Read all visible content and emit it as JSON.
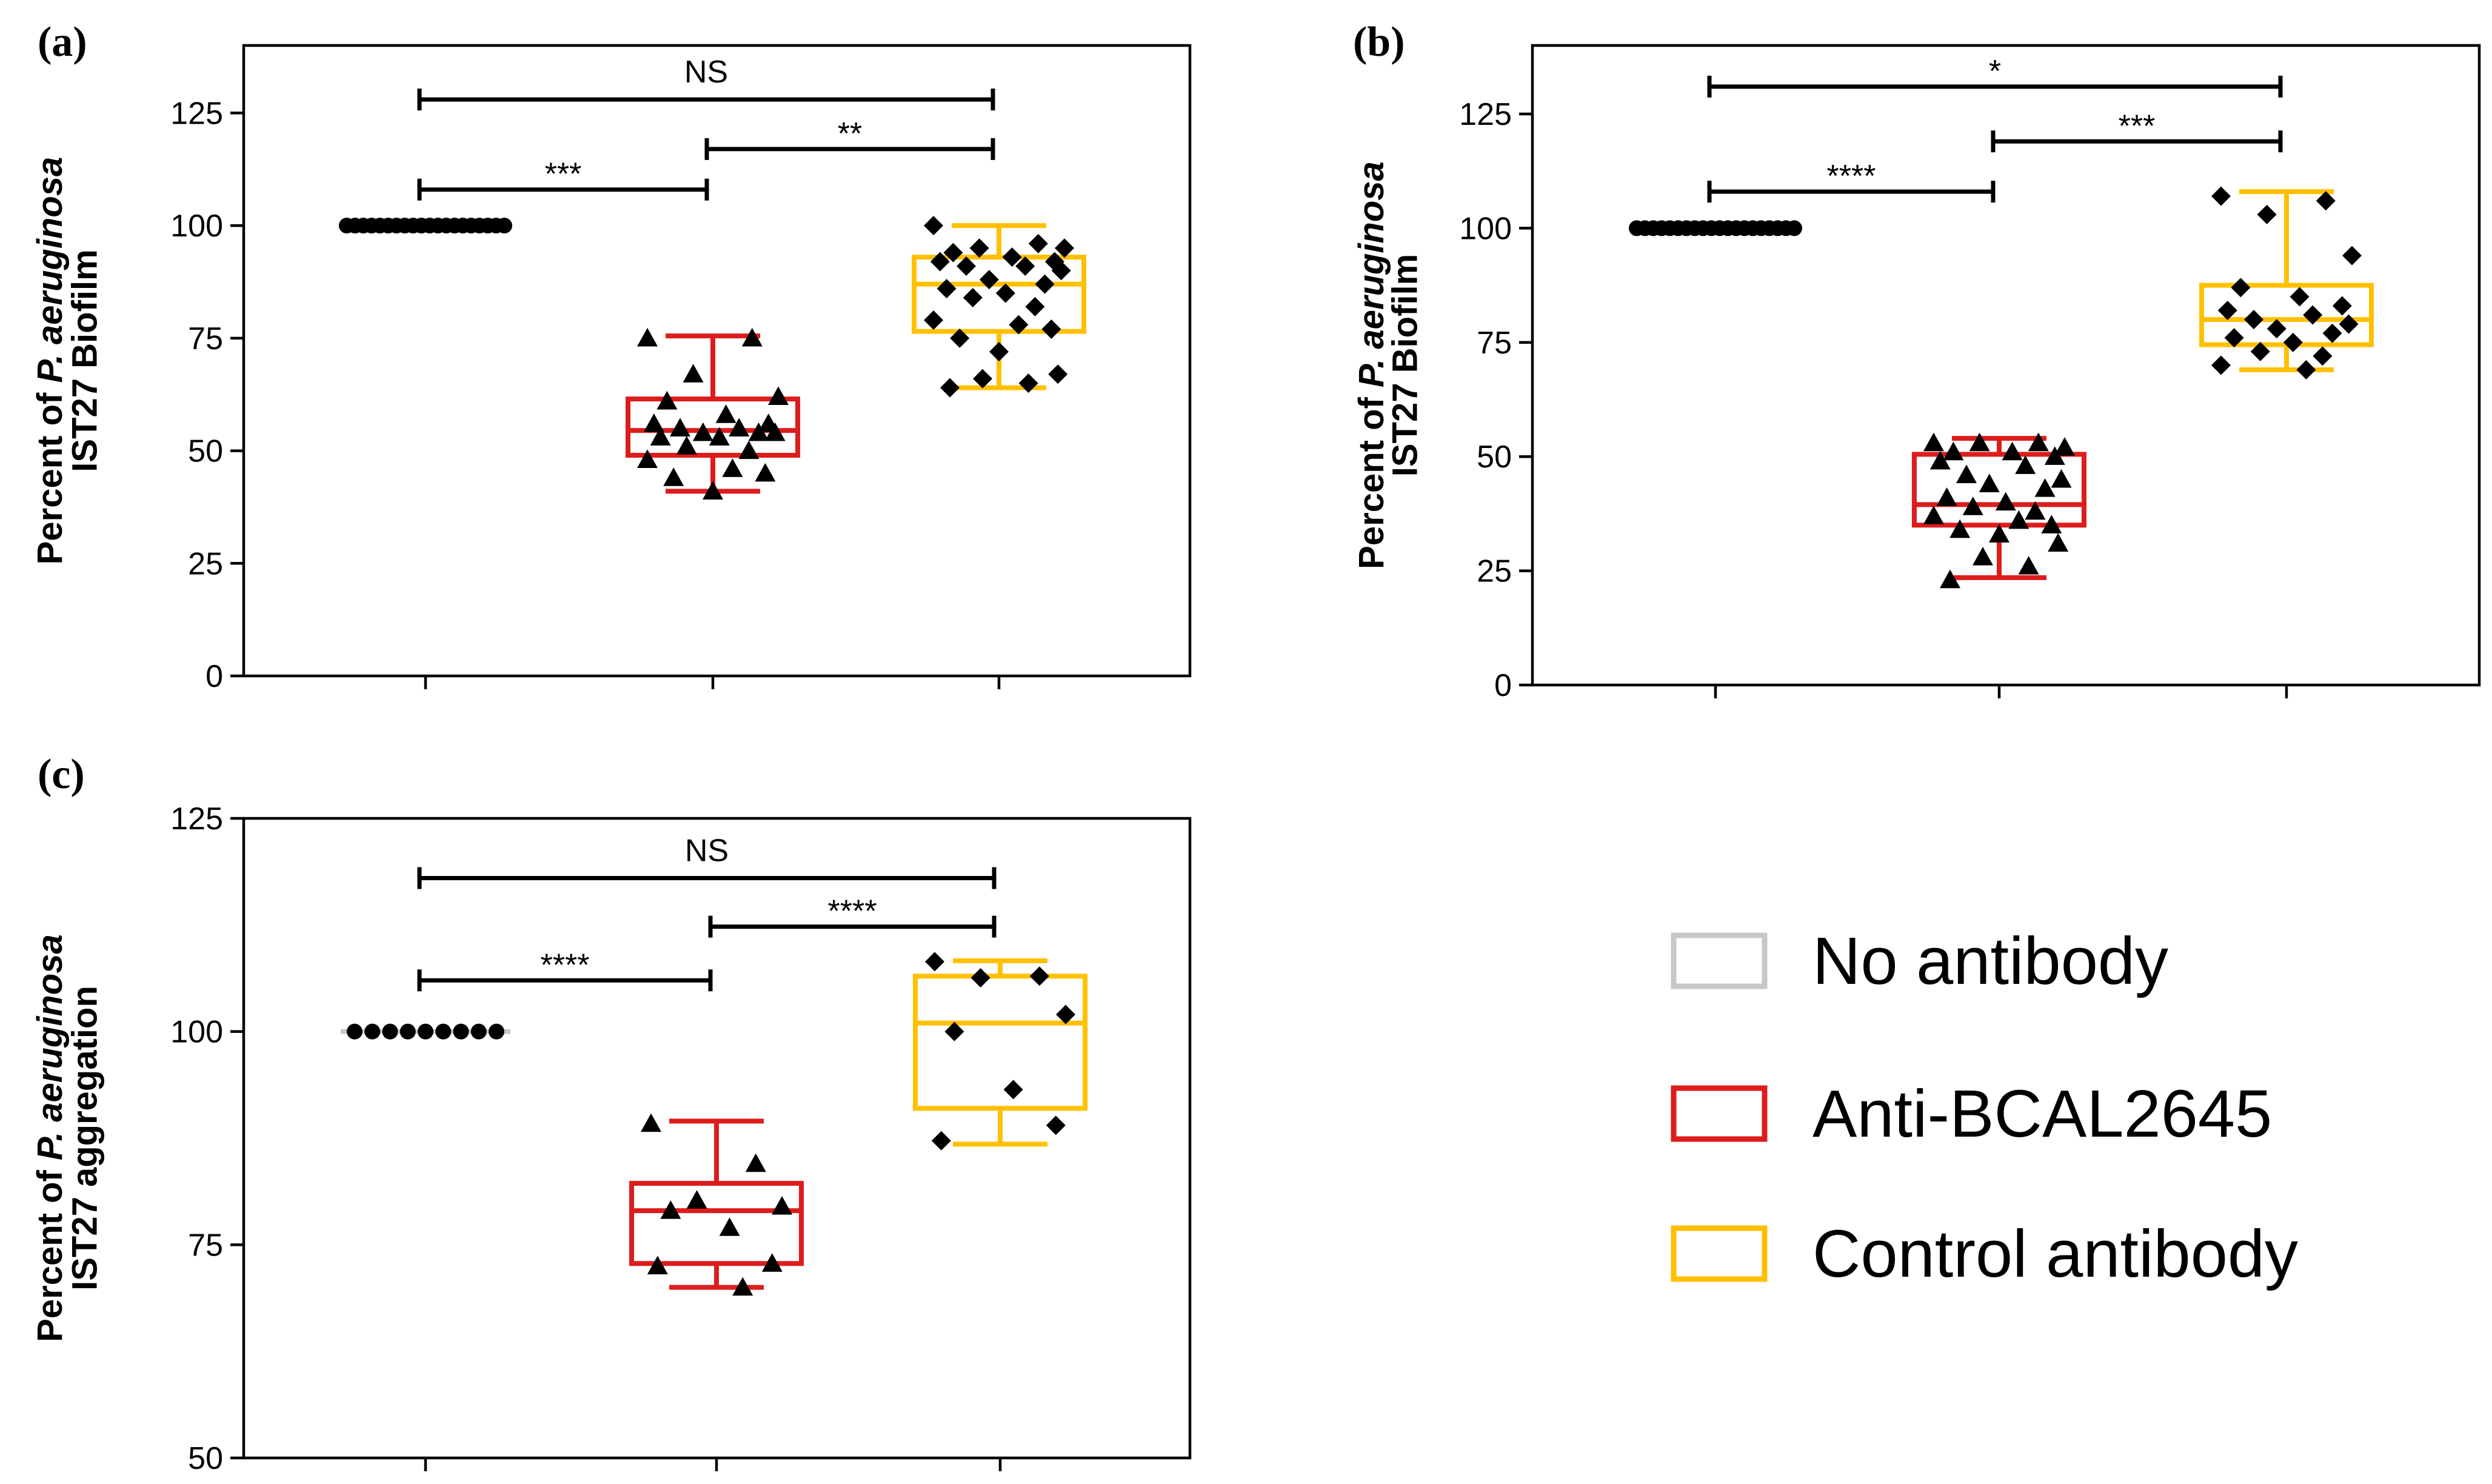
{
  "chart_data": [
    {
      "panel": "(a)",
      "type": "box",
      "ylabel_line1_prefix": "Percent of ",
      "ylabel_line1_italic": "P. aeruginosa",
      "ylabel_line2": "IST27 Biofilm",
      "ylim": [
        0,
        140
      ],
      "yticks": [
        0,
        25,
        50,
        75,
        100,
        125
      ],
      "groups": [
        {
          "name": "No antibody",
          "color": "#c8c8c8",
          "marker": "circle",
          "box": [
            100,
            100,
            100,
            100,
            100
          ],
          "points": [
            100,
            100,
            100,
            100,
            100,
            100,
            100,
            100,
            100,
            100,
            100,
            100,
            100,
            100,
            100,
            100,
            100,
            100,
            100,
            100
          ]
        },
        {
          "name": "Anti-BCAL2645",
          "color": "#dd1c1c",
          "marker": "triangle",
          "box": [
            41,
            49,
            54.5,
            61.5,
            75.5
          ],
          "points": [
            75,
            75,
            67,
            62,
            61,
            58,
            56,
            56,
            55,
            55,
            54,
            54,
            54,
            53,
            53,
            51,
            50,
            48,
            46,
            45,
            44,
            41
          ]
        },
        {
          "name": "Control antibody",
          "color": "#ffc000",
          "marker": "diamond",
          "box": [
            64,
            76.5,
            87,
            93,
            100
          ],
          "points": [
            100,
            96,
            95,
            95,
            94,
            93,
            92,
            92,
            91,
            91,
            90,
            88,
            87,
            86,
            85,
            84,
            82,
            79,
            78,
            77,
            75,
            72,
            67,
            66,
            65,
            64
          ]
        }
      ],
      "significance": [
        {
          "from": 0,
          "to": 2,
          "level": 128,
          "label": "NS"
        },
        {
          "from": 1,
          "to": 2,
          "level": 117,
          "label": "**"
        },
        {
          "from": 0,
          "to": 1,
          "level": 108,
          "label": "***"
        }
      ]
    },
    {
      "panel": "(b)",
      "type": "box",
      "ylabel_line1_prefix": "Percent of ",
      "ylabel_line1_italic": "P. aeruginosa",
      "ylabel_line2": "IST27 Biofilm",
      "ylim": [
        0,
        140
      ],
      "yticks": [
        0,
        25,
        50,
        75,
        100,
        125
      ],
      "groups": [
        {
          "name": "No antibody",
          "color": "#c8c8c8",
          "marker": "circle",
          "box": [
            100,
            100,
            100,
            100,
            100
          ],
          "points": [
            100,
            100,
            100,
            100,
            100,
            100,
            100,
            100,
            100,
            100,
            100,
            100,
            100,
            100,
            100,
            100,
            100,
            100,
            100,
            100
          ]
        },
        {
          "name": "Anti-BCAL2645",
          "color": "#dd1c1c",
          "marker": "triangle",
          "box": [
            23.5,
            35,
            39.5,
            50.5,
            54
          ],
          "points": [
            53,
            53,
            53,
            52,
            51,
            51,
            50,
            49,
            48,
            46,
            45,
            44,
            43,
            41,
            40,
            39,
            38,
            37,
            36,
            35,
            34,
            33,
            31,
            28,
            26,
            23
          ]
        },
        {
          "name": "Control antibody",
          "color": "#ffc000",
          "marker": "diamond",
          "box": [
            69,
            74.5,
            80,
            87.5,
            108
          ],
          "points": [
            107,
            106,
            103,
            94,
            87,
            85,
            83,
            82,
            81,
            80,
            79,
            78,
            77,
            76,
            75,
            73,
            72,
            70,
            69
          ]
        }
      ],
      "significance": [
        {
          "from": 0,
          "to": 2,
          "level": 131,
          "label": "*"
        },
        {
          "from": 1,
          "to": 2,
          "level": 119,
          "label": "***"
        },
        {
          "from": 0,
          "to": 1,
          "level": 108,
          "label": "****"
        }
      ]
    },
    {
      "panel": "(c)",
      "type": "box",
      "ylabel_line1_prefix": "Percent of ",
      "ylabel_line1_italic": "P. aeruginosa",
      "ylabel_line2": "IST27 aggregation",
      "ylim": [
        50,
        125
      ],
      "yticks": [
        50,
        75,
        100,
        125
      ],
      "groups": [
        {
          "name": "No antibody",
          "color": "#c8c8c8",
          "marker": "circle",
          "box": [
            100,
            100,
            100,
            100,
            100
          ],
          "points": [
            100,
            100,
            100,
            100,
            100,
            100,
            100,
            100,
            100
          ]
        },
        {
          "name": "Anti-BCAL2645",
          "color": "#dd1c1c",
          "marker": "triangle",
          "box": [
            70,
            72.8,
            79,
            82.2,
            89.5
          ],
          "points": [
            89.2,
            84.5,
            80.2,
            79.5,
            79,
            77,
            72.8,
            72.5,
            70
          ]
        },
        {
          "name": "Control antibody",
          "color": "#ffc000",
          "marker": "diamond",
          "box": [
            86.8,
            91,
            101,
            106.5,
            108.3
          ],
          "points": [
            108.2,
            106.5,
            106.3,
            102,
            100,
            93.2,
            89,
            87.2
          ]
        }
      ],
      "significance": [
        {
          "from": 0,
          "to": 2,
          "level": 118,
          "label": "NS"
        },
        {
          "from": 1,
          "to": 2,
          "level": 112.3,
          "label": "****"
        },
        {
          "from": 0,
          "to": 1,
          "level": 106,
          "label": "****"
        }
      ]
    }
  ],
  "legend": [
    {
      "label": "No antibody",
      "color": "#c8c8c8"
    },
    {
      "label": "Anti-BCAL2645",
      "color": "#dd1c1c"
    },
    {
      "label": "Control antibody",
      "color": "#ffc000"
    }
  ]
}
